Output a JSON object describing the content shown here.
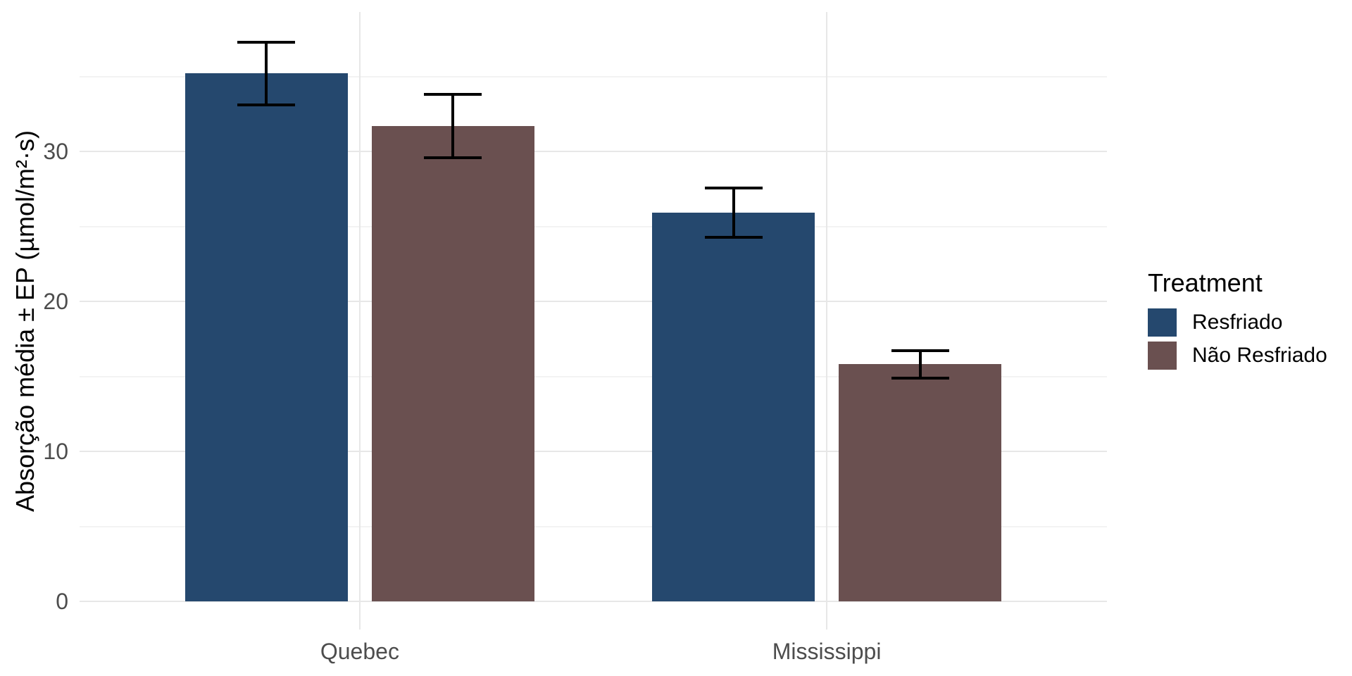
{
  "chart_data": {
    "type": "bar",
    "title": "",
    "categories": [
      "Quebec",
      "Mississippi"
    ],
    "series": [
      {
        "name": "Resfriado",
        "color": "#25486E",
        "values": [
          35.2,
          25.9
        ],
        "errors": [
          2.1,
          1.65
        ]
      },
      {
        "name": "Não Resfriado",
        "color": "#6A5050",
        "values": [
          31.7,
          15.8
        ],
        "errors": [
          2.1,
          0.9
        ]
      }
    ],
    "xlabel": "",
    "ylabel": "Absorção média ± EP (µmol/m²·s)",
    "y_major_ticks": [
      0,
      10,
      20,
      30
    ],
    "y_minor_ticks": [
      5,
      15,
      25,
      35
    ],
    "ylim": [
      0,
      39.3
    ],
    "grid": true,
    "legend_title": "Treatment",
    "legend_position": "right",
    "error_bars": true
  },
  "colors": {
    "background": "#FFFFFF",
    "axis_text": "#4D4D4D",
    "title_text": "#000000",
    "grid_major": "#E7E7E7",
    "grid_minor": "#F3F3F3",
    "error_bar": "#000000"
  }
}
